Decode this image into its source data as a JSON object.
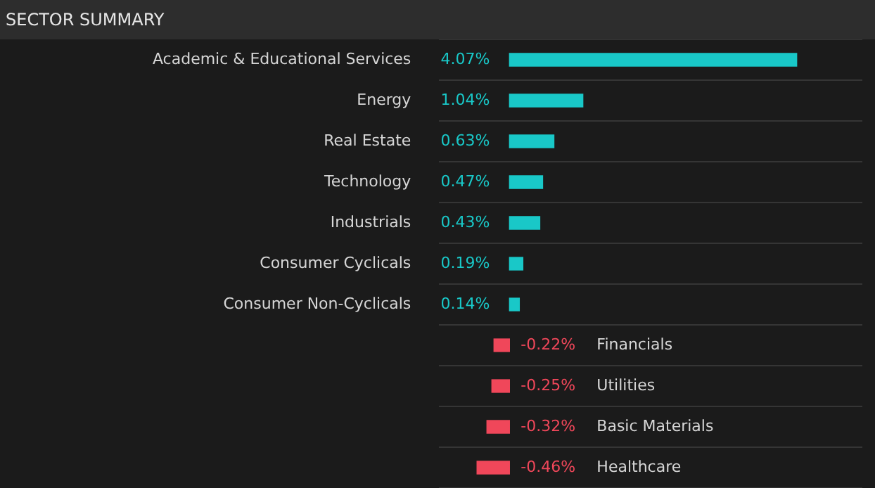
{
  "chart_data": {
    "type": "bar",
    "orientation": "horizontal",
    "title": "SECTOR SUMMARY",
    "categories": [
      "Academic & Educational Services",
      "Energy",
      "Real Estate",
      "Technology",
      "Industrials",
      "Consumer Cyclicals",
      "Consumer Non-Cyclicals",
      "Financials",
      "Utilities",
      "Basic Materials",
      "Healthcare"
    ],
    "values": [
      4.07,
      1.04,
      0.63,
      0.47,
      0.43,
      0.19,
      0.14,
      -0.22,
      -0.25,
      -0.32,
      -0.46
    ],
    "value_labels": [
      "4.07%",
      "1.04%",
      "0.63%",
      "0.47%",
      "0.43%",
      "0.19%",
      "0.14%",
      "-0.22%",
      "-0.25%",
      "-0.32%",
      "-0.46%"
    ],
    "colors": [
      "#19c8c8",
      "#19c8c8",
      "#19c8c8",
      "#19c8c8",
      "#19c8c8",
      "#19c8c8",
      "#19c8c8",
      "#f0475a",
      "#f0475a",
      "#f0475a",
      "#f0475a"
    ],
    "grid": "y"
  }
}
